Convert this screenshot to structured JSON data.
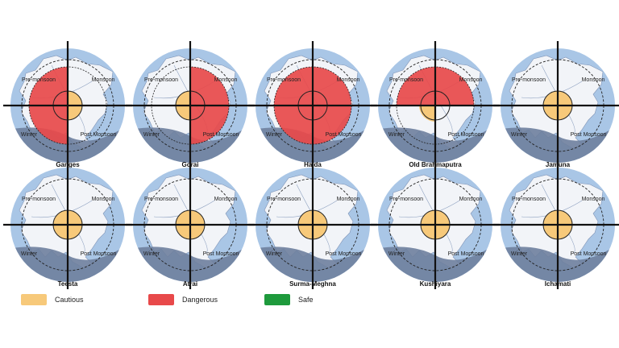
{
  "season_labels": {
    "top_left": "Pre-monsoon",
    "top_left_alt": "Pre-monsoon",
    "top_right": "Monsoon",
    "bottom_left": "Winter",
    "bottom_right": "Post Monsoon"
  },
  "colors": {
    "cautious": "#f7c97a",
    "dangerous": "#e8494a",
    "safe": "#1e9a3c",
    "map_water": "#a9c6e6",
    "map_land": "#f2f4f8",
    "map_shadow": "#6e7f9d"
  },
  "rivers": [
    {
      "name": "Ganges",
      "premonsoon_label": "Pre-monsoon",
      "quadrants": {
        "pre_monsoon": "dangerous",
        "monsoon": "cautious",
        "winter": "dangerous",
        "post_monsoon": "cautious"
      }
    },
    {
      "name": "Gorai",
      "premonsoon_label": "Pre-monsoon",
      "quadrants": {
        "pre_monsoon": "cautious",
        "monsoon": "dangerous",
        "winter": "cautious",
        "post_monsoon": "dangerous"
      }
    },
    {
      "name": "Halda",
      "premonsoon_label": "Pre-monsoon",
      "quadrants": {
        "pre_monsoon": "dangerous",
        "monsoon": "dangerous",
        "winter": "dangerous",
        "post_monsoon": "dangerous"
      }
    },
    {
      "name": "Old Brahmaputra",
      "premonsoon_label": "Pre-monsoon",
      "quadrants": {
        "pre_monsoon": "dangerous",
        "monsoon": "dangerous",
        "winter": "cautious",
        "post_monsoon": "none"
      }
    },
    {
      "name": "Jamuna",
      "premonsoon_label": "Pre-monsoon",
      "quadrants": {
        "pre_monsoon": "cautious",
        "monsoon": "cautious",
        "winter": "cautious",
        "post_monsoon": "cautious"
      }
    },
    {
      "name": "Teesta",
      "premonsoon_label": "Pre-monsoon",
      "quadrants": {
        "pre_monsoon": "cautious",
        "monsoon": "cautious",
        "winter": "cautious",
        "post_monsoon": "cautious"
      }
    },
    {
      "name": "Atrai",
      "premonsoon_label": "Pre-monsoon",
      "quadrants": {
        "pre_monsoon": "cautious",
        "monsoon": "cautious",
        "winter": "cautious",
        "post_monsoon": "cautious"
      }
    },
    {
      "name": "Surma-Meghna",
      "premonsoon_label": "Pre-monsoon",
      "quadrants": {
        "pre_monsoon": "cautious",
        "monsoon": "cautious",
        "winter": "cautious",
        "post_monsoon": "cautious"
      }
    },
    {
      "name": "Kushiyara",
      "premonsoon_label": "Pre-monsoon",
      "quadrants": {
        "pre_monsoon": "cautious",
        "monsoon": "cautious",
        "winter": "cautious",
        "post_monsoon": "cautious"
      }
    },
    {
      "name": "Ichamati",
      "premonsoon_label": "Pre-monsoon",
      "quadrants": {
        "pre_monsoon": "cautious",
        "monsoon": "cautious",
        "winter": "cautious",
        "post_monsoon": "cautious"
      }
    }
  ],
  "legend": [
    {
      "key": "cautious",
      "label": "Cautious"
    },
    {
      "key": "dangerous",
      "label": "Dangerous"
    },
    {
      "key": "safe",
      "label": "Safe"
    }
  ]
}
